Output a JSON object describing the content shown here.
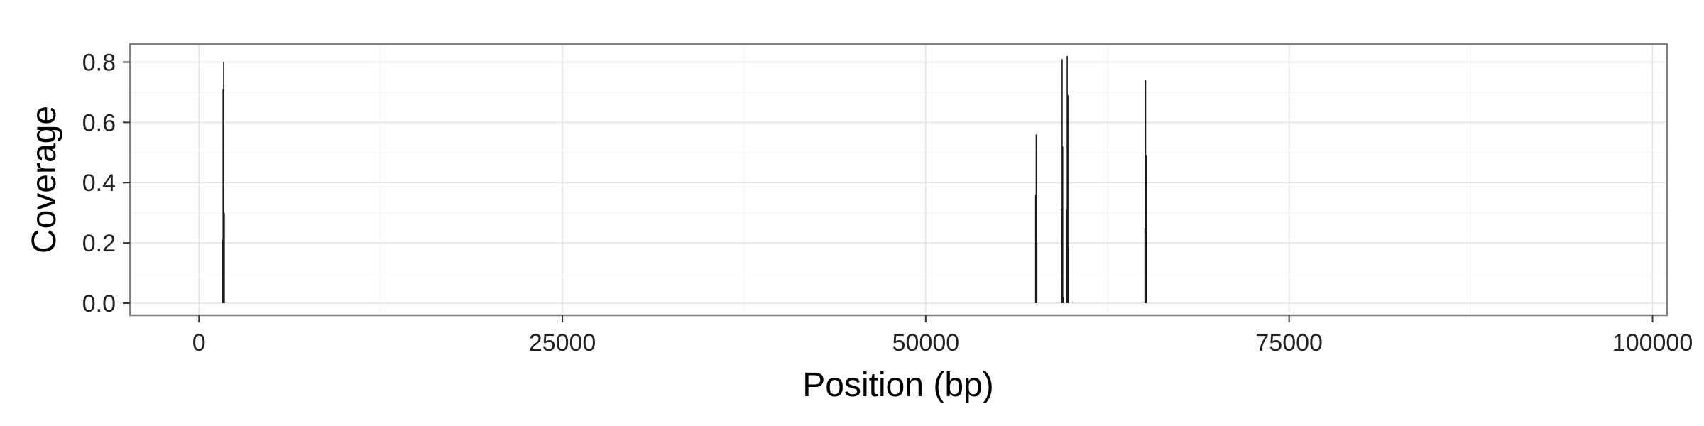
{
  "chart_data": {
    "type": "line",
    "xlabel": "Position (bp)",
    "ylabel": "Coverage",
    "xlim": [
      -4750,
      101000
    ],
    "ylim": [
      -0.04,
      0.86
    ],
    "x_ticks": [
      {
        "value": 0,
        "label": "0"
      },
      {
        "value": 25000,
        "label": "25000"
      },
      {
        "value": 50000,
        "label": "50000"
      },
      {
        "value": 75000,
        "label": "75000"
      },
      {
        "value": 100000,
        "label": "100000"
      }
    ],
    "y_ticks": [
      {
        "value": 0.0,
        "label": "0.0"
      },
      {
        "value": 0.2,
        "label": "0.2"
      },
      {
        "value": 0.4,
        "label": "0.4"
      },
      {
        "value": 0.6,
        "label": "0.6"
      },
      {
        "value": 0.8,
        "label": "0.8"
      }
    ],
    "grid": true,
    "points": [
      {
        "x": 1620,
        "y": 0.21
      },
      {
        "x": 1660,
        "y": 0.71
      },
      {
        "x": 1700,
        "y": 0.8
      },
      {
        "x": 1740,
        "y": 0.3
      },
      {
        "x": 57560,
        "y": 0.36
      },
      {
        "x": 57600,
        "y": 0.56
      },
      {
        "x": 57640,
        "y": 0.2
      },
      {
        "x": 59330,
        "y": 0.31
      },
      {
        "x": 59380,
        "y": 0.81
      },
      {
        "x": 59420,
        "y": 0.52
      },
      {
        "x": 59460,
        "y": 0.02
      },
      {
        "x": 59680,
        "y": 0.31
      },
      {
        "x": 59730,
        "y": 0.82
      },
      {
        "x": 59780,
        "y": 0.69
      },
      {
        "x": 59820,
        "y": 0.19
      },
      {
        "x": 65080,
        "y": 0.25
      },
      {
        "x": 65120,
        "y": 0.74
      },
      {
        "x": 65160,
        "y": 0.49
      }
    ]
  }
}
